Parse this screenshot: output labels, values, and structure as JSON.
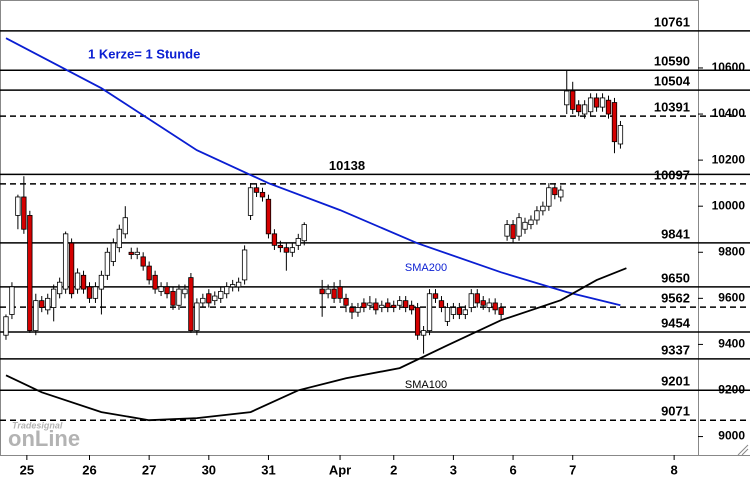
{
  "chart_data": {
    "type": "candlestick",
    "annotation": "1 Kerze= 1 Stunde",
    "watermark": [
      "Tradesignal",
      "onLine"
    ],
    "up_color": "#ffffff",
    "down_color": "#d40000",
    "x": [
      1,
      2,
      3,
      4,
      5,
      6,
      7,
      8,
      9,
      10,
      11,
      12,
      13,
      14,
      15,
      16,
      17,
      18,
      19,
      20,
      21,
      22,
      23,
      24,
      25,
      26,
      27,
      28,
      29,
      30,
      31,
      32,
      33,
      34,
      35,
      36,
      37,
      38,
      39,
      40,
      41,
      42,
      43,
      44,
      45,
      46,
      47,
      48,
      49,
      50,
      51,
      54,
      55,
      56,
      57,
      58,
      59,
      60,
      61,
      62,
      63,
      64,
      65,
      66,
      67,
      68,
      69,
      70,
      71,
      72,
      73,
      74,
      75,
      76,
      77,
      78,
      79,
      80,
      81,
      82,
      83,
      84,
      85,
      86,
      87,
      88,
      89,
      90,
      91,
      92,
      93,
      94,
      95,
      96,
      97,
      98,
      99,
      100,
      101,
      102,
      103,
      104
    ],
    "open": [
      9440,
      9530,
      9960,
      10040,
      9960,
      9460,
      9590,
      9550,
      9560,
      9620,
      9640,
      9840,
      9640,
      9700,
      9650,
      9600,
      9640,
      9700,
      9760,
      9820,
      9880,
      9800,
      9790,
      9780,
      9740,
      9700,
      9630,
      9650,
      9630,
      9570,
      9620,
      9690,
      9460,
      9580,
      9620,
      9590,
      9600,
      9620,
      9650,
      9650,
      9680,
      9960,
      10080,
      10060,
      10030,
      9880,
      9830,
      9820,
      9800,
      9830,
      9850,
      9640,
      9620,
      9640,
      9650,
      9600,
      9560,
      9540,
      9580,
      9570,
      9580,
      9560,
      9580,
      9570,
      9570,
      9590,
      9570,
      9560,
      9440,
      9460,
      9620,
      9590,
      9500,
      9530,
      9560,
      9530,
      9560,
      9620,
      9590,
      9560,
      9580,
      9560,
      9870,
      9920,
      9870,
      9900,
      9920,
      9940,
      9980,
      10000,
      10080,
      10040,
      10440,
      10500,
      10440,
      10400,
      10410,
      10470,
      10430,
      10460,
      10450,
      10270
    ],
    "high": [
      9530,
      9670,
      10050,
      10130,
      9980,
      9620,
      9610,
      9620,
      9660,
      9690,
      9890,
      9860,
      9730,
      9720,
      9670,
      9670,
      9720,
      9820,
      9860,
      9920,
      10000,
      9820,
      9820,
      9800,
      9760,
      9720,
      9670,
      9670,
      9650,
      9660,
      9660,
      9710,
      9600,
      9620,
      9640,
      9630,
      9650,
      9670,
      9680,
      9690,
      9830,
      10100,
      10100,
      10080,
      10050,
      9900,
      9850,
      9840,
      9840,
      9880,
      9930,
      9680,
      9660,
      9670,
      9680,
      9620,
      9580,
      9580,
      9600,
      9610,
      9600,
      9590,
      9600,
      9590,
      9610,
      9610,
      9590,
      9580,
      9480,
      9640,
      9640,
      9610,
      9580,
      9580,
      9580,
      9570,
      9640,
      9640,
      9610,
      9600,
      9600,
      9580,
      9940,
      9940,
      9970,
      9950,
      9960,
      10000,
      10020,
      10100,
      10100,
      10090,
      10590,
      10540,
      10460,
      10460,
      10490,
      10490,
      10490,
      10480,
      10470,
      10370
    ],
    "low": [
      9420,
      9510,
      9900,
      9880,
      9450,
      9440,
      9540,
      9530,
      9500,
      9600,
      9620,
      9600,
      9620,
      9620,
      9580,
      9580,
      9530,
      9680,
      9740,
      9800,
      9860,
      9770,
      9770,
      9720,
      9660,
      9620,
      9610,
      9600,
      9550,
      9550,
      9600,
      9450,
      9440,
      9560,
      9560,
      9570,
      9580,
      9600,
      9630,
      9630,
      9660,
      9940,
      10040,
      10020,
      9860,
      9810,
      9800,
      9720,
      9780,
      9810,
      9830,
      9520,
      9600,
      9580,
      9580,
      9540,
      9510,
      9520,
      9540,
      9550,
      9530,
      9540,
      9540,
      9540,
      9550,
      9540,
      9530,
      9420,
      9360,
      9440,
      9580,
      9540,
      9480,
      9510,
      9510,
      9510,
      9540,
      9560,
      9550,
      9540,
      9530,
      9510,
      9850,
      9840,
      9850,
      9880,
      9900,
      9920,
      9960,
      9980,
      10030,
      10020,
      10400,
      10400,
      10390,
      10380,
      10390,
      10410,
      10410,
      10380,
      10230,
      10250
    ],
    "close": [
      9520,
      9650,
      10040,
      9900,
      9460,
      9590,
      9560,
      9600,
      9640,
      9670,
      9880,
      9620,
      9710,
      9640,
      9600,
      9650,
      9700,
      9800,
      9840,
      9900,
      9950,
      9790,
      9800,
      9740,
      9680,
      9640,
      9650,
      9620,
      9570,
      9640,
      9640,
      9460,
      9580,
      9600,
      9580,
      9610,
      9630,
      9650,
      9660,
      9670,
      9810,
      10080,
      10060,
      10040,
      9880,
      9830,
      9820,
      9800,
      9820,
      9860,
      9920,
      9620,
      9640,
      9600,
      9600,
      9570,
      9540,
      9560,
      9560,
      9580,
      9550,
      9570,
      9560,
      9560,
      9590,
      9560,
      9550,
      9440,
      9460,
      9620,
      9600,
      9560,
      9560,
      9560,
      9530,
      9550,
      9620,
      9580,
      9570,
      9580,
      9550,
      9530,
      9920,
      9860,
      9950,
      9930,
      9940,
      9980,
      10000,
      10080,
      10050,
      10070,
      10500,
      10420,
      10410,
      10440,
      10470,
      10430,
      10470,
      10400,
      10280,
      10350
    ],
    "lines": [
      {
        "name": "SMA200",
        "color": "#0a1ed2",
        "x": [
          1,
          17,
          33,
          45,
          57,
          70,
          84,
          95,
          104
        ],
        "values": [
          10729,
          10512,
          10243,
          10100,
          9983,
          9839,
          9713,
          9627,
          9570
        ]
      },
      {
        "name": "SMA100",
        "color": "#000000",
        "x": [
          1,
          7,
          17,
          25,
          33,
          42,
          50,
          58,
          67,
          75,
          84,
          94,
          100,
          105
        ],
        "values": [
          9266,
          9192,
          9106,
          9071,
          9080,
          9106,
          9201,
          9253,
          9297,
          9396,
          9505,
          9592,
          9679,
          9731
        ]
      }
    ],
    "levels": [
      {
        "value": 10761,
        "style": "solid",
        "label_position": "right"
      },
      {
        "value": 10590,
        "style": "solid",
        "label_position": "right"
      },
      {
        "value": 10504,
        "style": "solid",
        "label_position": "right"
      },
      {
        "value": 10391,
        "style": "dashed",
        "label_position": "right"
      },
      {
        "value": 10138,
        "style": "solid",
        "label_position": "center"
      },
      {
        "value": 10097,
        "style": "dashed",
        "label_position": "right"
      },
      {
        "value": 9841,
        "style": "solid",
        "label_position": "right"
      },
      {
        "value": 9650,
        "style": "solid",
        "label_position": "right"
      },
      {
        "value": 9562,
        "style": "dashed",
        "label_position": "right"
      },
      {
        "value": 9454,
        "style": "solid",
        "label_position": "right"
      },
      {
        "value": 9337,
        "style": "solid",
        "label_position": "right"
      },
      {
        "value": 9201,
        "style": "solid",
        "label_position": "right"
      },
      {
        "value": 9071,
        "style": "dashed",
        "label_position": "right"
      }
    ],
    "xlim": [
      0,
      117
    ],
    "xticks": [
      {
        "value": 4.5,
        "label": "25"
      },
      {
        "value": 15,
        "label": "26"
      },
      {
        "value": 25,
        "label": "27"
      },
      {
        "value": 35,
        "label": "30"
      },
      {
        "value": 45,
        "label": "31"
      },
      {
        "value": 57,
        "label": "Apr"
      },
      {
        "value": 66,
        "label": "2"
      },
      {
        "value": 76,
        "label": "3"
      },
      {
        "value": 86,
        "label": "6"
      },
      {
        "value": 96,
        "label": "7"
      },
      {
        "value": 113,
        "label": "8"
      }
    ],
    "ylim": [
      8920,
      10895
    ],
    "yticks": [
      9000,
      9200,
      9400,
      9600,
      9800,
      10000,
      10200,
      10400,
      10600
    ]
  }
}
